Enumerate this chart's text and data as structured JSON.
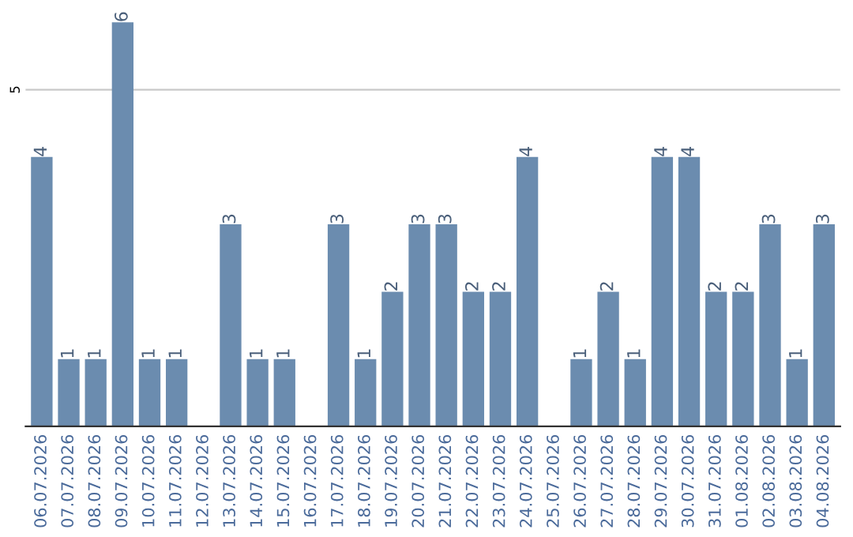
{
  "chart_data": {
    "type": "bar",
    "categories": [
      "06.07.2026",
      "07.07.2026",
      "08.07.2026",
      "09.07.2026",
      "10.07.2026",
      "11.07.2026",
      "12.07.2026",
      "13.07.2026",
      "14.07.2026",
      "15.07.2026",
      "16.07.2026",
      "17.07.2026",
      "18.07.2026",
      "19.07.2026",
      "20.07.2026",
      "21.07.2026",
      "22.07.2026",
      "23.07.2026",
      "24.07.2026",
      "25.07.2026",
      "26.07.2026",
      "27.07.2026",
      "28.07.2026",
      "29.07.2026",
      "30.07.2026",
      "31.07.2026",
      "01.08.2026",
      "02.08.2026",
      "03.08.2026",
      "04.08.2026"
    ],
    "values": [
      4,
      1,
      1,
      6,
      1,
      1,
      0,
      3,
      1,
      1,
      0,
      3,
      1,
      2,
      3,
      3,
      2,
      2,
      4,
      0,
      1,
      2,
      1,
      4,
      4,
      2,
      2,
      3,
      1,
      3
    ],
    "value_labels": [
      "4",
      "1",
      "1",
      "6",
      "1",
      "1",
      null,
      "3",
      "1",
      "1",
      null,
      "3",
      "1",
      "2",
      "3",
      "3",
      "2",
      "2",
      "4",
      null,
      "1",
      "2",
      "1",
      "4",
      "4",
      "2",
      "2",
      "3",
      "1",
      "3"
    ],
    "color": "#6b8caf",
    "ref_lines": [
      {
        "axis": "y",
        "value": 5,
        "label": "5",
        "color": "#c8c8c8"
      }
    ]
  }
}
